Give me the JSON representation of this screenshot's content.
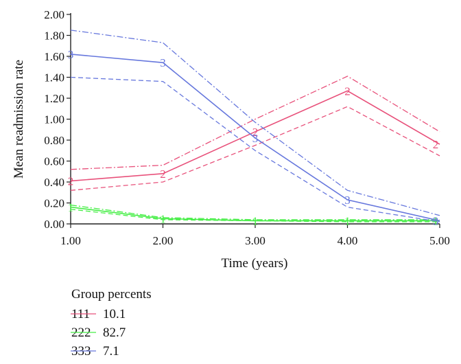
{
  "chart_data": {
    "type": "line",
    "xlabel": "Time (years)",
    "ylabel": "Mean readmission rate",
    "xlim": [
      1.0,
      5.0
    ],
    "ylim": [
      0.0,
      2.0
    ],
    "x_ticks": [
      "1.00",
      "2.00",
      "3.00",
      "4.00",
      "5.00"
    ],
    "y_ticks": [
      "0.00",
      "0.20",
      "0.40",
      "0.60",
      "0.80",
      "1.00",
      "1.20",
      "1.40",
      "1.60",
      "1.80",
      "2.00"
    ],
    "x": [
      1,
      2,
      3,
      4,
      5
    ],
    "series": [
      {
        "marker": "1",
        "color": "#44ee44",
        "values": [
          0.16,
          0.05,
          0.03,
          0.03,
          0.03
        ],
        "upper": [
          0.18,
          0.06,
          0.04,
          0.04,
          0.04
        ],
        "lower": [
          0.14,
          0.04,
          0.03,
          0.02,
          0.02
        ]
      },
      {
        "marker": "2",
        "color": "#e8507a",
        "values": [
          0.41,
          0.48,
          0.88,
          1.27,
          0.76
        ],
        "upper": [
          0.52,
          0.56,
          1.0,
          1.41,
          0.88
        ],
        "lower": [
          0.32,
          0.4,
          0.75,
          1.12,
          0.65
        ]
      },
      {
        "marker": "3",
        "color": "#6677dd",
        "values": [
          1.62,
          1.54,
          0.82,
          0.23,
          0.03
        ],
        "upper": [
          1.85,
          1.73,
          0.97,
          0.32,
          0.08
        ],
        "lower": [
          1.4,
          1.36,
          0.7,
          0.16,
          0.02
        ]
      }
    ],
    "grid": false,
    "legend": {
      "title": "Group percents",
      "placement": "bottom-left",
      "entries": [
        {
          "symbol": "111",
          "value": "10.1",
          "color": "#e8507a"
        },
        {
          "symbol": "222",
          "value": "82.7",
          "color": "#44ee44"
        },
        {
          "symbol": "333",
          "value": "7.1",
          "color": "#6677dd"
        }
      ]
    }
  }
}
